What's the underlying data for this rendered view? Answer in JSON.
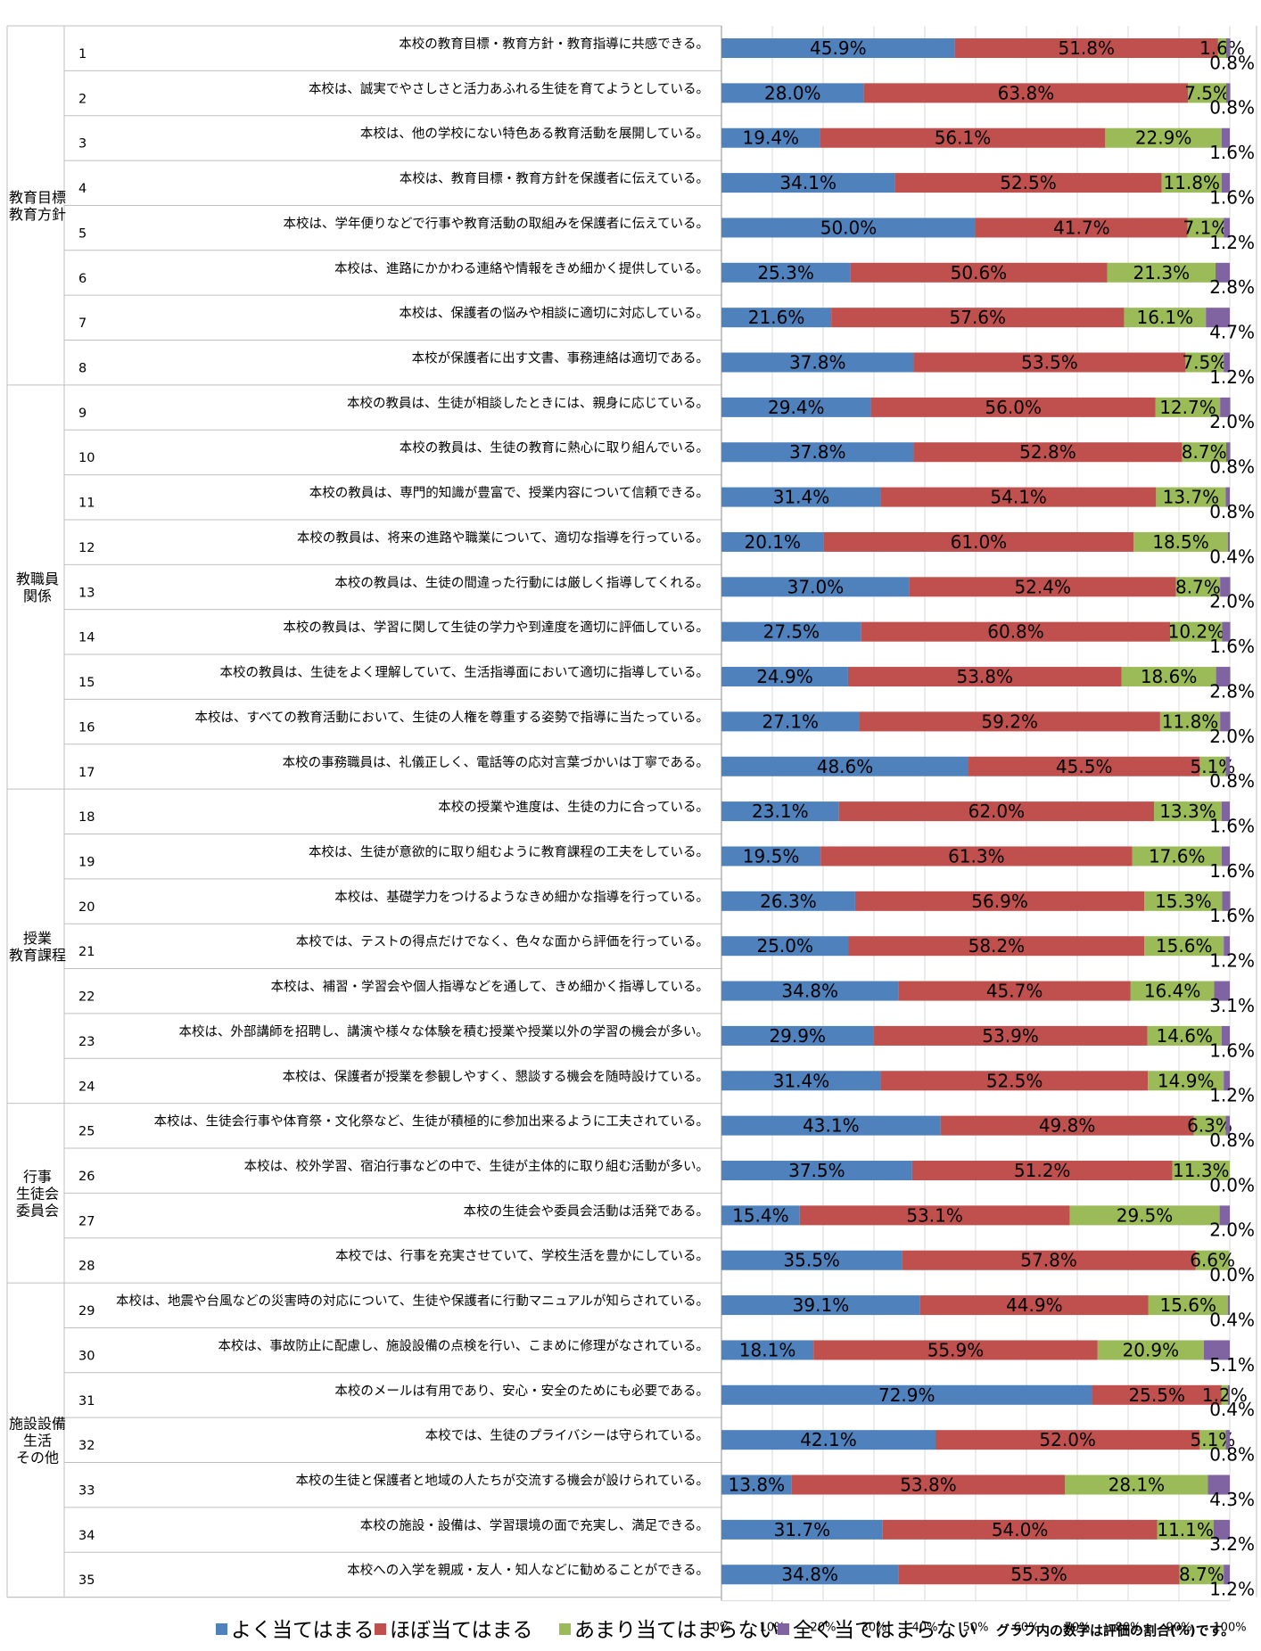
{
  "chart_data": {
    "type": "bar",
    "stacked": "percent",
    "orientation": "horizontal",
    "series": [
      {
        "name": "よく当てはまる",
        "color": "#4f81bd"
      },
      {
        "name": "ほぼ当てはまる",
        "color": "#c0504d"
      },
      {
        "name": "あまり当てはまらない",
        "color": "#9bbb59"
      },
      {
        "name": "全く当てはまらない",
        "color": "#8064a2"
      }
    ],
    "categories": [
      {
        "label": "教育目標\n教育方針",
        "rows": [
          1,
          8
        ]
      },
      {
        "label": "教職員\n関係",
        "rows": [
          9,
          17
        ]
      },
      {
        "label": "授業\n教育課程",
        "rows": [
          18,
          24
        ]
      },
      {
        "label": "行事\n生徒会\n委員会",
        "rows": [
          25,
          28
        ]
      },
      {
        "label": "施設設備\n生活\nその他",
        "rows": [
          29,
          35
        ]
      }
    ],
    "items": [
      {
        "no": "1",
        "text": "本校の教育目標・教育方針・教育指導に共感できる。",
        "values": [
          45.9,
          51.8,
          1.6,
          0.8
        ]
      },
      {
        "no": "2",
        "text": "本校は、誠実でやさしさと活力あふれる生徒を育てようとしている。",
        "values": [
          28.0,
          63.8,
          7.5,
          0.8
        ]
      },
      {
        "no": "3",
        "text": "本校は、他の学校にない特色ある教育活動を展開している。",
        "values": [
          19.4,
          56.1,
          22.9,
          1.6
        ]
      },
      {
        "no": "4",
        "text": "本校は、教育目標・教育方針を保護者に伝えている。",
        "values": [
          34.1,
          52.5,
          11.8,
          1.6
        ]
      },
      {
        "no": "5",
        "text": "本校は、学年便りなどで行事や教育活動の取組みを保護者に伝えている。",
        "values": [
          50.0,
          41.7,
          7.1,
          1.2
        ]
      },
      {
        "no": "6",
        "text": "本校は、進路にかかわる連絡や情報をきめ細かく提供している。",
        "values": [
          25.3,
          50.6,
          21.3,
          2.8
        ]
      },
      {
        "no": "7",
        "text": "本校は、保護者の悩みや相談に適切に対応している。",
        "values": [
          21.6,
          57.6,
          16.1,
          4.7
        ]
      },
      {
        "no": "8",
        "text": "本校が保護者に出す文書、事務連絡は適切である。",
        "values": [
          37.8,
          53.5,
          7.5,
          1.2
        ]
      },
      {
        "no": "9",
        "text": "本校の教員は、生徒が相談したときには、親身に応じている。",
        "values": [
          29.4,
          56.0,
          12.7,
          2.0
        ]
      },
      {
        "no": "10",
        "text": "本校の教員は、生徒の教育に熱心に取り組んでいる。",
        "values": [
          37.8,
          52.8,
          8.7,
          0.8
        ]
      },
      {
        "no": "11",
        "text": "本校の教員は、専門的知識が豊富で、授業内容について信頼できる。",
        "values": [
          31.4,
          54.1,
          13.7,
          0.8
        ]
      },
      {
        "no": "12",
        "text": "本校の教員は、将来の進路や職業について、適切な指導を行っている。",
        "values": [
          20.1,
          61.0,
          18.5,
          0.4
        ]
      },
      {
        "no": "13",
        "text": "本校の教員は、生徒の間違った行動には厳しく指導してくれる。",
        "values": [
          37.0,
          52.4,
          8.7,
          2.0
        ]
      },
      {
        "no": "14",
        "text": "本校の教員は、学習に関して生徒の学力や到達度を適切に評価している。",
        "values": [
          27.5,
          60.8,
          10.2,
          1.6
        ]
      },
      {
        "no": "15",
        "text": "本校の教員は、生徒をよく理解していて、生活指導面において適切に指導している。",
        "values": [
          24.9,
          53.8,
          18.6,
          2.8
        ]
      },
      {
        "no": "16",
        "text": "本校は、すべての教育活動において、生徒の人権を尊重する姿勢で指導に当たっている。",
        "values": [
          27.1,
          59.2,
          11.8,
          2.0
        ]
      },
      {
        "no": "17",
        "text": "本校の事務職員は、礼儀正しく、電話等の応対言葉づかいは丁寧である。",
        "values": [
          48.6,
          45.5,
          5.1,
          0.8
        ]
      },
      {
        "no": "18",
        "text": "本校の授業や進度は、生徒の力に合っている。",
        "values": [
          23.1,
          62.0,
          13.3,
          1.6
        ]
      },
      {
        "no": "19",
        "text": "本校は、生徒が意欲的に取り組むように教育課程の工夫をしている。",
        "values": [
          19.5,
          61.3,
          17.6,
          1.6
        ]
      },
      {
        "no": "20",
        "text": "本校は、基礎学力をつけるようなきめ細かな指導を行っている。",
        "values": [
          26.3,
          56.9,
          15.3,
          1.6
        ]
      },
      {
        "no": "21",
        "text": "本校では、テストの得点だけでなく、色々な面から評価を行っている。",
        "values": [
          25.0,
          58.2,
          15.6,
          1.2
        ]
      },
      {
        "no": "22",
        "text": "本校は、補習・学習会や個人指導などを通して、きめ細かく指導している。",
        "values": [
          34.8,
          45.7,
          16.4,
          3.1
        ]
      },
      {
        "no": "23",
        "text": "本校は、外部講師を招聘し、講演や様々な体験を積む授業や授業以外の学習の機会が多い。",
        "values": [
          29.9,
          53.9,
          14.6,
          1.6
        ]
      },
      {
        "no": "24",
        "text": "本校は、保護者が授業を参観しやすく、懇談する機会を随時設けている。",
        "values": [
          31.4,
          52.5,
          14.9,
          1.2
        ]
      },
      {
        "no": "25",
        "text": "本校は、生徒会行事や体育祭・文化祭など、生徒が積極的に参加出来るように工夫されている。",
        "values": [
          43.1,
          49.8,
          6.3,
          0.8
        ]
      },
      {
        "no": "26",
        "text": "本校は、校外学習、宿泊行事などの中で、生徒が主体的に取り組む活動が多い。",
        "values": [
          37.5,
          51.2,
          11.3,
          0.0
        ]
      },
      {
        "no": "27",
        "text": "本校の生徒会や委員会活動は活発である。",
        "values": [
          15.4,
          53.1,
          29.5,
          2.0
        ]
      },
      {
        "no": "28",
        "text": "本校では、行事を充実させていて、学校生活を豊かにしている。",
        "values": [
          35.5,
          57.8,
          6.6,
          0.0
        ]
      },
      {
        "no": "29",
        "text": "本校は、地震や台風などの災害時の対応について、生徒や保護者に行動マニュアルが知らされている。",
        "values": [
          39.1,
          44.9,
          15.6,
          0.4
        ]
      },
      {
        "no": "30",
        "text": "本校は、事故防止に配慮し、施設設備の点検を行い、こまめに修理がなされている。",
        "values": [
          18.1,
          55.9,
          20.9,
          5.1
        ]
      },
      {
        "no": "31",
        "text": "本校のメールは有用であり、安心・安全のためにも必要である。",
        "values": [
          72.9,
          25.5,
          1.2,
          0.4
        ]
      },
      {
        "no": "32",
        "text": "本校では、生徒のプライバシーは守られている。",
        "values": [
          42.1,
          52.0,
          5.1,
          0.8
        ]
      },
      {
        "no": "33",
        "text": "本校の生徒と保護者と地域の人たちが交流する機会が設けられている。",
        "values": [
          13.8,
          53.8,
          28.1,
          4.3
        ]
      },
      {
        "no": "34",
        "text": "本校の施設・設備は、学習環境の面で充実し、満足できる。",
        "values": [
          31.7,
          54.0,
          11.1,
          3.2
        ]
      },
      {
        "no": "35",
        "text": "本校への入学を親戚・友人・知人などに勧めることができる。",
        "values": [
          34.8,
          55.3,
          8.7,
          1.2
        ]
      }
    ],
    "xaxis": {
      "ticks": [
        "0%",
        "10%",
        "20%",
        "30%",
        "40%",
        "50%",
        "60%",
        "70%",
        "80%",
        "90%",
        "100%"
      ],
      "range": [
        0,
        100
      ]
    },
    "grid": true,
    "legend": "bottom"
  },
  "note": "グラフ内の数字は評価の割合(%)です。"
}
